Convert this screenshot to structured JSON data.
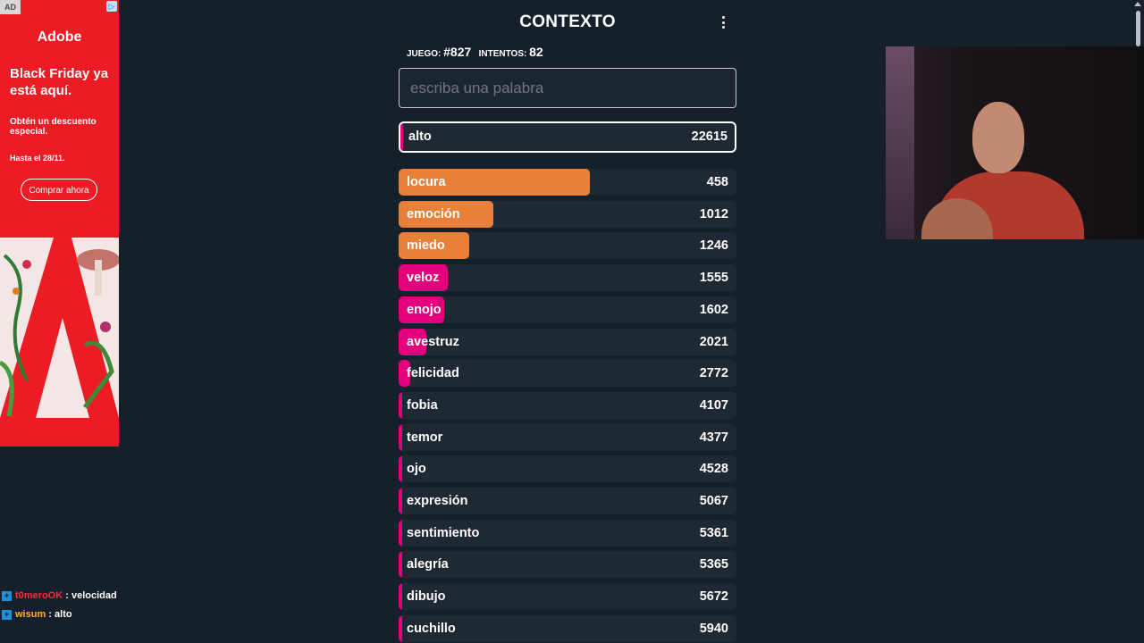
{
  "ad": {
    "tag": "AD",
    "brand": "Adobe",
    "headline": "Black Friday ya está aquí.",
    "body": "Obtén un descuento especial.",
    "date": "Hasta el 28/11.",
    "cta": "Comprar ahora"
  },
  "game": {
    "title": "CONTEXTO",
    "game_label": "JUEGO:",
    "game_number": "#827",
    "attempts_label": "INTENTOS:",
    "attempts": "82",
    "input_placeholder": "escriba una palabra",
    "last_guess": {
      "word": "alto",
      "score": "22615"
    },
    "guesses": [
      {
        "word": "locura",
        "score": "458",
        "fill": 0.565,
        "color": "#e8803a"
      },
      {
        "word": "emoción",
        "score": "1012",
        "fill": 0.28,
        "color": "#e8803a"
      },
      {
        "word": "miedo",
        "score": "1246",
        "fill": 0.21,
        "color": "#e8803a"
      },
      {
        "word": "veloz",
        "score": "1555",
        "fill": 0.145,
        "color": "#e4007c"
      },
      {
        "word": "enojo",
        "score": "1602",
        "fill": 0.135,
        "color": "#e4007c"
      },
      {
        "word": "avestruz",
        "score": "2021",
        "fill": 0.082,
        "color": "#e4007c"
      },
      {
        "word": "felicidad",
        "score": "2772",
        "fill": 0.035,
        "color": "#e4007c"
      },
      {
        "word": "fobia",
        "score": "4107",
        "fill": 0.01,
        "color": "#e4007c"
      },
      {
        "word": "temor",
        "score": "4377",
        "fill": 0.01,
        "color": "#e4007c"
      },
      {
        "word": "ojo",
        "score": "4528",
        "fill": 0.01,
        "color": "#e4007c"
      },
      {
        "word": "expresión",
        "score": "5067",
        "fill": 0.01,
        "color": "#e4007c"
      },
      {
        "word": "sentimiento",
        "score": "5361",
        "fill": 0.01,
        "color": "#e4007c"
      },
      {
        "word": "alegría",
        "score": "5365",
        "fill": 0.01,
        "color": "#e4007c"
      },
      {
        "word": "dibujo",
        "score": "5672",
        "fill": 0.01,
        "color": "#e4007c"
      },
      {
        "word": "cuchillo",
        "score": "5940",
        "fill": 0.01,
        "color": "#e4007c"
      }
    ]
  },
  "chat": [
    {
      "user": "t0meroOK",
      "message": ": velocidad"
    },
    {
      "user": "wisum",
      "message": ": alto"
    }
  ]
}
